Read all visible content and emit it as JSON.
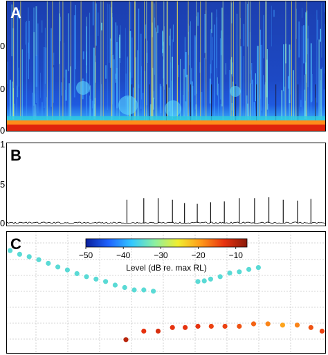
{
  "chart_data": [
    {
      "panel": "A",
      "type": "heatmap",
      "title": "",
      "xlabel": "",
      "ylabel": "",
      "ytick_labels_visible": [
        "0",
        "0",
        "0"
      ],
      "colormap": "jet",
      "description": "spectrogram"
    },
    {
      "panel": "B",
      "type": "line",
      "title": "",
      "ytick_labels_visible": [
        "1",
        "5",
        "0"
      ],
      "ylim": [
        0,
        1
      ],
      "pulses_x_fraction": [
        0.377,
        0.43,
        0.475,
        0.52,
        0.558,
        0.598,
        0.64,
        0.683,
        0.73,
        0.778,
        0.823,
        0.868,
        0.913,
        0.955
      ],
      "pulses_height_fraction": [
        0.28,
        0.3,
        0.3,
        0.28,
        0.24,
        0.23,
        0.25,
        0.26,
        0.3,
        0.3,
        0.31,
        0.28,
        0.27,
        0.29
      ]
    },
    {
      "panel": "C",
      "type": "scatter",
      "title": "",
      "colorbar": {
        "label": "Level (dB re. max RL)",
        "ticks": [
          "−50",
          "−40",
          "−30",
          "−20",
          "−10"
        ],
        "range": [
          -50,
          -7
        ],
        "colors": [
          "#0a1f9c",
          "#1f64ff",
          "#33c8ff",
          "#8cf0a0",
          "#f0ee30",
          "#ff9a1a",
          "#e8330f",
          "#8a1a0a"
        ]
      },
      "series": [
        {
          "x": [
            0.01,
            0.04,
            0.07,
            0.1,
            0.13,
            0.16,
            0.19,
            0.22,
            0.25,
            0.28,
            0.31,
            0.34,
            0.37,
            0.4,
            0.43,
            0.46
          ],
          "y": [
            0.155,
            0.185,
            0.205,
            0.23,
            0.26,
            0.29,
            0.315,
            0.345,
            0.37,
            0.39,
            0.41,
            0.44,
            0.46,
            0.48,
            0.48,
            0.49
          ],
          "level": [
            -35,
            -35,
            -35,
            -35,
            -35,
            -35,
            -35,
            -35,
            -35,
            -35,
            -35,
            -35,
            -35,
            -35,
            -35,
            -35
          ]
        },
        {
          "x": [
            0.6,
            0.62,
            0.64,
            0.67,
            0.7,
            0.73,
            0.76,
            0.79
          ],
          "y": [
            0.41,
            0.405,
            0.39,
            0.37,
            0.34,
            0.33,
            0.31,
            0.295
          ],
          "level": [
            -35,
            -35,
            -35,
            -35,
            -35,
            -35,
            -35,
            -35
          ]
        },
        {
          "x": [
            0.374,
            0.43,
            0.475,
            0.52,
            0.56,
            0.6,
            0.642,
            0.685,
            0.73,
            0.775,
            0.82,
            0.866,
            0.912,
            0.955,
            0.99
          ],
          "y": [
            0.89,
            0.82,
            0.82,
            0.79,
            0.79,
            0.78,
            0.78,
            0.78,
            0.78,
            0.76,
            0.76,
            0.77,
            0.77,
            0.79,
            0.82
          ],
          "level": [
            -10,
            -13,
            -12,
            -13,
            -13,
            -13,
            -14,
            -14,
            -15,
            -16,
            -18,
            -20,
            -18,
            -15,
            -14
          ]
        }
      ]
    }
  ],
  "labels": {
    "panel_a": "A",
    "panel_b": "B",
    "panel_c": "C"
  }
}
